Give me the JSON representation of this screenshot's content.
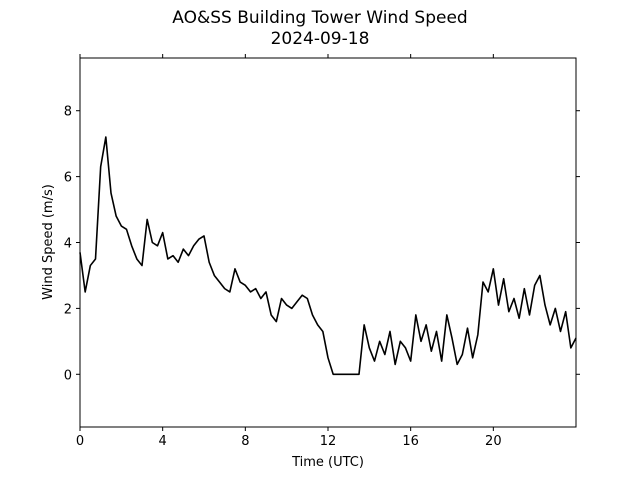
{
  "chart_data": {
    "type": "line",
    "title": "AO&SS Building Tower Wind Speed",
    "subtitle": "2024-09-18",
    "x_label": "Time (UTC)",
    "y_label": "Wind Speed (m/s)",
    "x": [
      0,
      0.25,
      0.5,
      0.75,
      1,
      1.25,
      1.5,
      1.75,
      2,
      2.25,
      2.5,
      2.75,
      3,
      3.25,
      3.5,
      3.75,
      4,
      4.25,
      4.5,
      4.75,
      5,
      5.25,
      5.5,
      5.75,
      6,
      6.25,
      6.5,
      6.75,
      7,
      7.25,
      7.5,
      7.75,
      8,
      8.25,
      8.5,
      8.75,
      9,
      9.25,
      9.5,
      9.75,
      10,
      10.25,
      10.5,
      10.75,
      11,
      11.25,
      11.5,
      11.75,
      12,
      12.25,
      12.5,
      12.75,
      13,
      13.25,
      13.5,
      13.75,
      14,
      14.25,
      14.5,
      14.75,
      15,
      15.25,
      15.5,
      15.75,
      16,
      16.25,
      16.5,
      16.75,
      17,
      17.25,
      17.5,
      17.75,
      18,
      18.25,
      18.5,
      18.75,
      19,
      19.25,
      19.5,
      19.75,
      20,
      20.25,
      20.5,
      20.75,
      21,
      21.25,
      21.5,
      21.75,
      22,
      22.25,
      22.5,
      22.75,
      23,
      23.25,
      23.5,
      23.75,
      24
    ],
    "series": [
      {
        "name": "Wind Speed",
        "color": "#000000",
        "values": [
          3.7,
          2.5,
          3.3,
          3.5,
          6.3,
          7.2,
          5.5,
          4.8,
          4.5,
          4.4,
          3.9,
          3.5,
          3.3,
          4.7,
          4.0,
          3.9,
          4.3,
          3.5,
          3.6,
          3.4,
          3.8,
          3.6,
          3.9,
          4.1,
          4.2,
          3.4,
          3.0,
          2.8,
          2.6,
          2.5,
          3.2,
          2.8,
          2.7,
          2.5,
          2.6,
          2.3,
          2.5,
          1.8,
          1.6,
          2.3,
          2.1,
          2.0,
          2.2,
          2.4,
          2.3,
          1.8,
          1.5,
          1.3,
          0.5,
          0,
          0,
          0,
          0,
          0,
          0,
          1.5,
          0.8,
          0.4,
          1.0,
          0.6,
          1.3,
          0.3,
          1.0,
          0.8,
          0.4,
          1.8,
          1.0,
          1.5,
          0.7,
          1.3,
          0.4,
          1.8,
          1.1,
          0.3,
          0.6,
          1.4,
          0.5,
          1.2,
          2.8,
          2.5,
          3.2,
          2.1,
          2.9,
          1.9,
          2.3,
          1.7,
          2.6,
          1.8,
          2.7,
          3.0,
          2.1,
          1.5,
          2.0,
          1.3,
          1.9,
          0.8,
          1.1
        ]
      }
    ],
    "xlim": [
      0,
      24
    ],
    "xticks": [
      0,
      4,
      8,
      12,
      16,
      20
    ],
    "ylim": [
      -1.6,
      9.6
    ],
    "yticks": [
      0,
      2,
      4,
      6,
      8
    ]
  }
}
